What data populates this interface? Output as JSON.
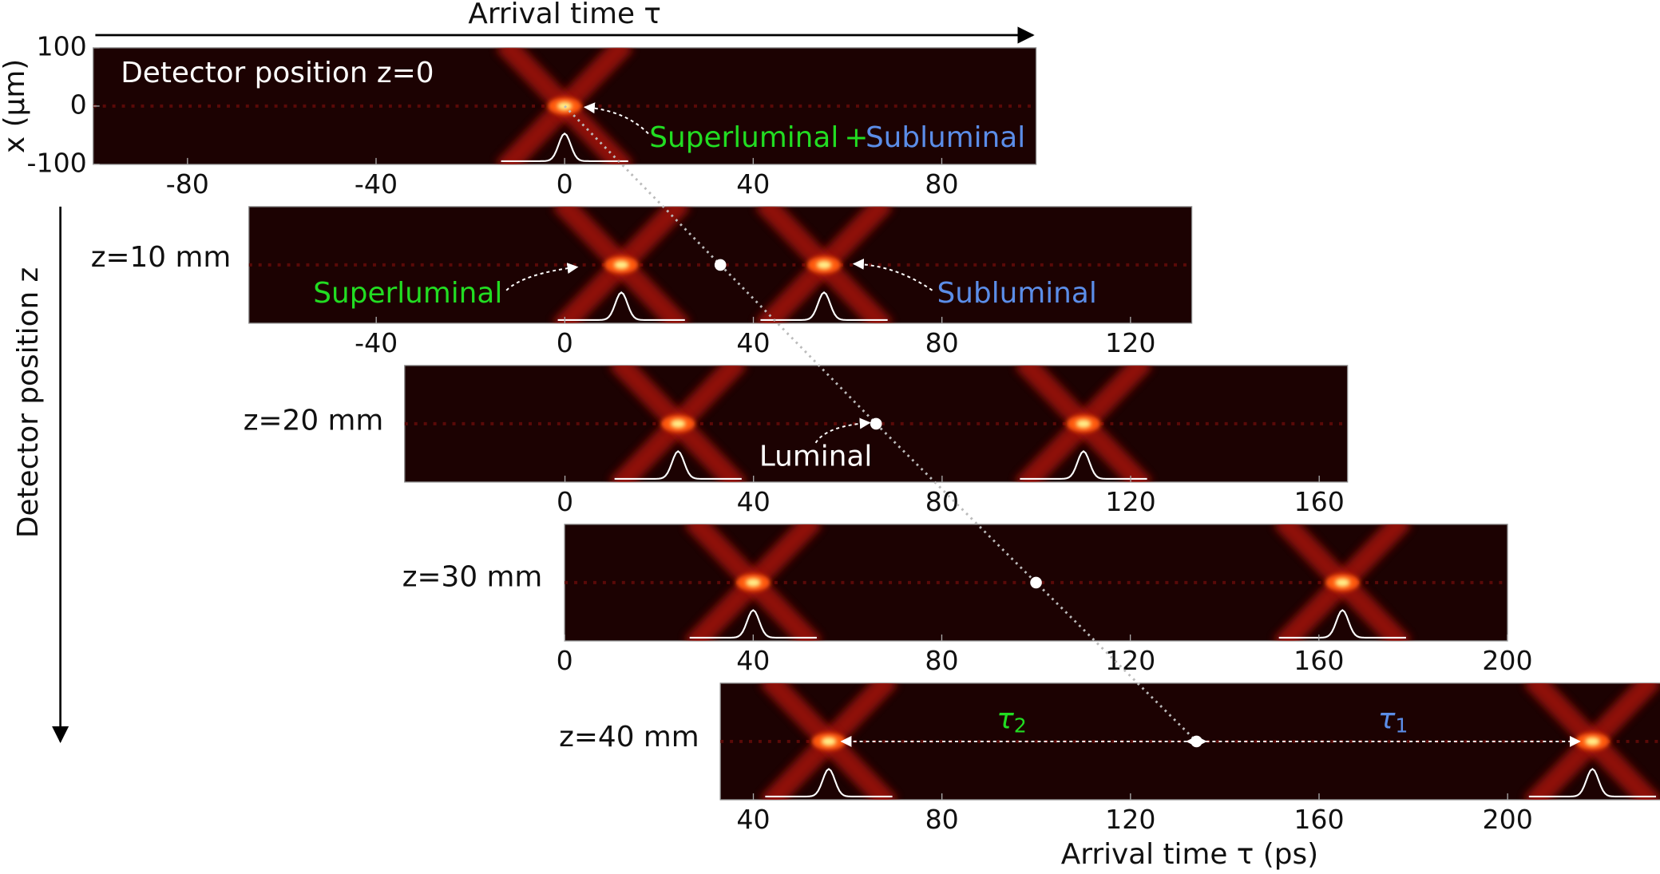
{
  "figure": {
    "side_label": "Detector position z"
  },
  "chart_data": [
    {
      "type": "heatmap",
      "label": "Detector position z=0",
      "xlabel": "Arrival time τ",
      "ylabel": "x (μm)",
      "xlim": [
        -100,
        100
      ],
      "xticks": [
        -80,
        -40,
        0,
        40,
        80
      ],
      "ylim": [
        -100,
        100
      ],
      "yticks": [
        100,
        0,
        -100
      ],
      "peaks": [
        0
      ],
      "luminal": null,
      "annotations": [
        {
          "text": "Superluminal",
          "color": "#22dd22"
        },
        {
          "text": "+",
          "color": "#22dd22"
        },
        {
          "text": "Subluminal",
          "color": "#5b8de8"
        }
      ]
    },
    {
      "type": "heatmap",
      "label": "z=10 mm",
      "xlim": [
        -67,
        133
      ],
      "xticks": [
        -40,
        0,
        40,
        80,
        120
      ],
      "peaks": [
        12,
        55
      ],
      "luminal": 33,
      "annotations": [
        {
          "text": "Superluminal",
          "color": "#22dd22"
        },
        {
          "text": "Subluminal",
          "color": "#5b8de8"
        }
      ]
    },
    {
      "type": "heatmap",
      "label": "z=20 mm",
      "xlim": [
        -34,
        166
      ],
      "xticks": [
        0,
        40,
        80,
        120,
        160
      ],
      "peaks": [
        24,
        110
      ],
      "luminal": 66,
      "annotations": [
        {
          "text": "Luminal",
          "color": "#ffffff"
        }
      ]
    },
    {
      "type": "heatmap",
      "label": "z=30 mm",
      "xlim": [
        0,
        200
      ],
      "xticks": [
        0,
        40,
        80,
        120,
        160,
        200
      ],
      "peaks": [
        40,
        165
      ],
      "luminal": 100
    },
    {
      "type": "heatmap",
      "label": "z=40 mm",
      "xlabel": "Arrival time τ (ps)",
      "xlim": [
        33,
        233
      ],
      "xticks": [
        40,
        80,
        120,
        160,
        200
      ],
      "peaks": [
        56,
        218
      ],
      "luminal": 134,
      "annotations": [
        {
          "text": "τ",
          "sub": "2",
          "color": "#22dd22"
        },
        {
          "text": "τ",
          "sub": "1",
          "color": "#5b8de8"
        }
      ]
    }
  ]
}
